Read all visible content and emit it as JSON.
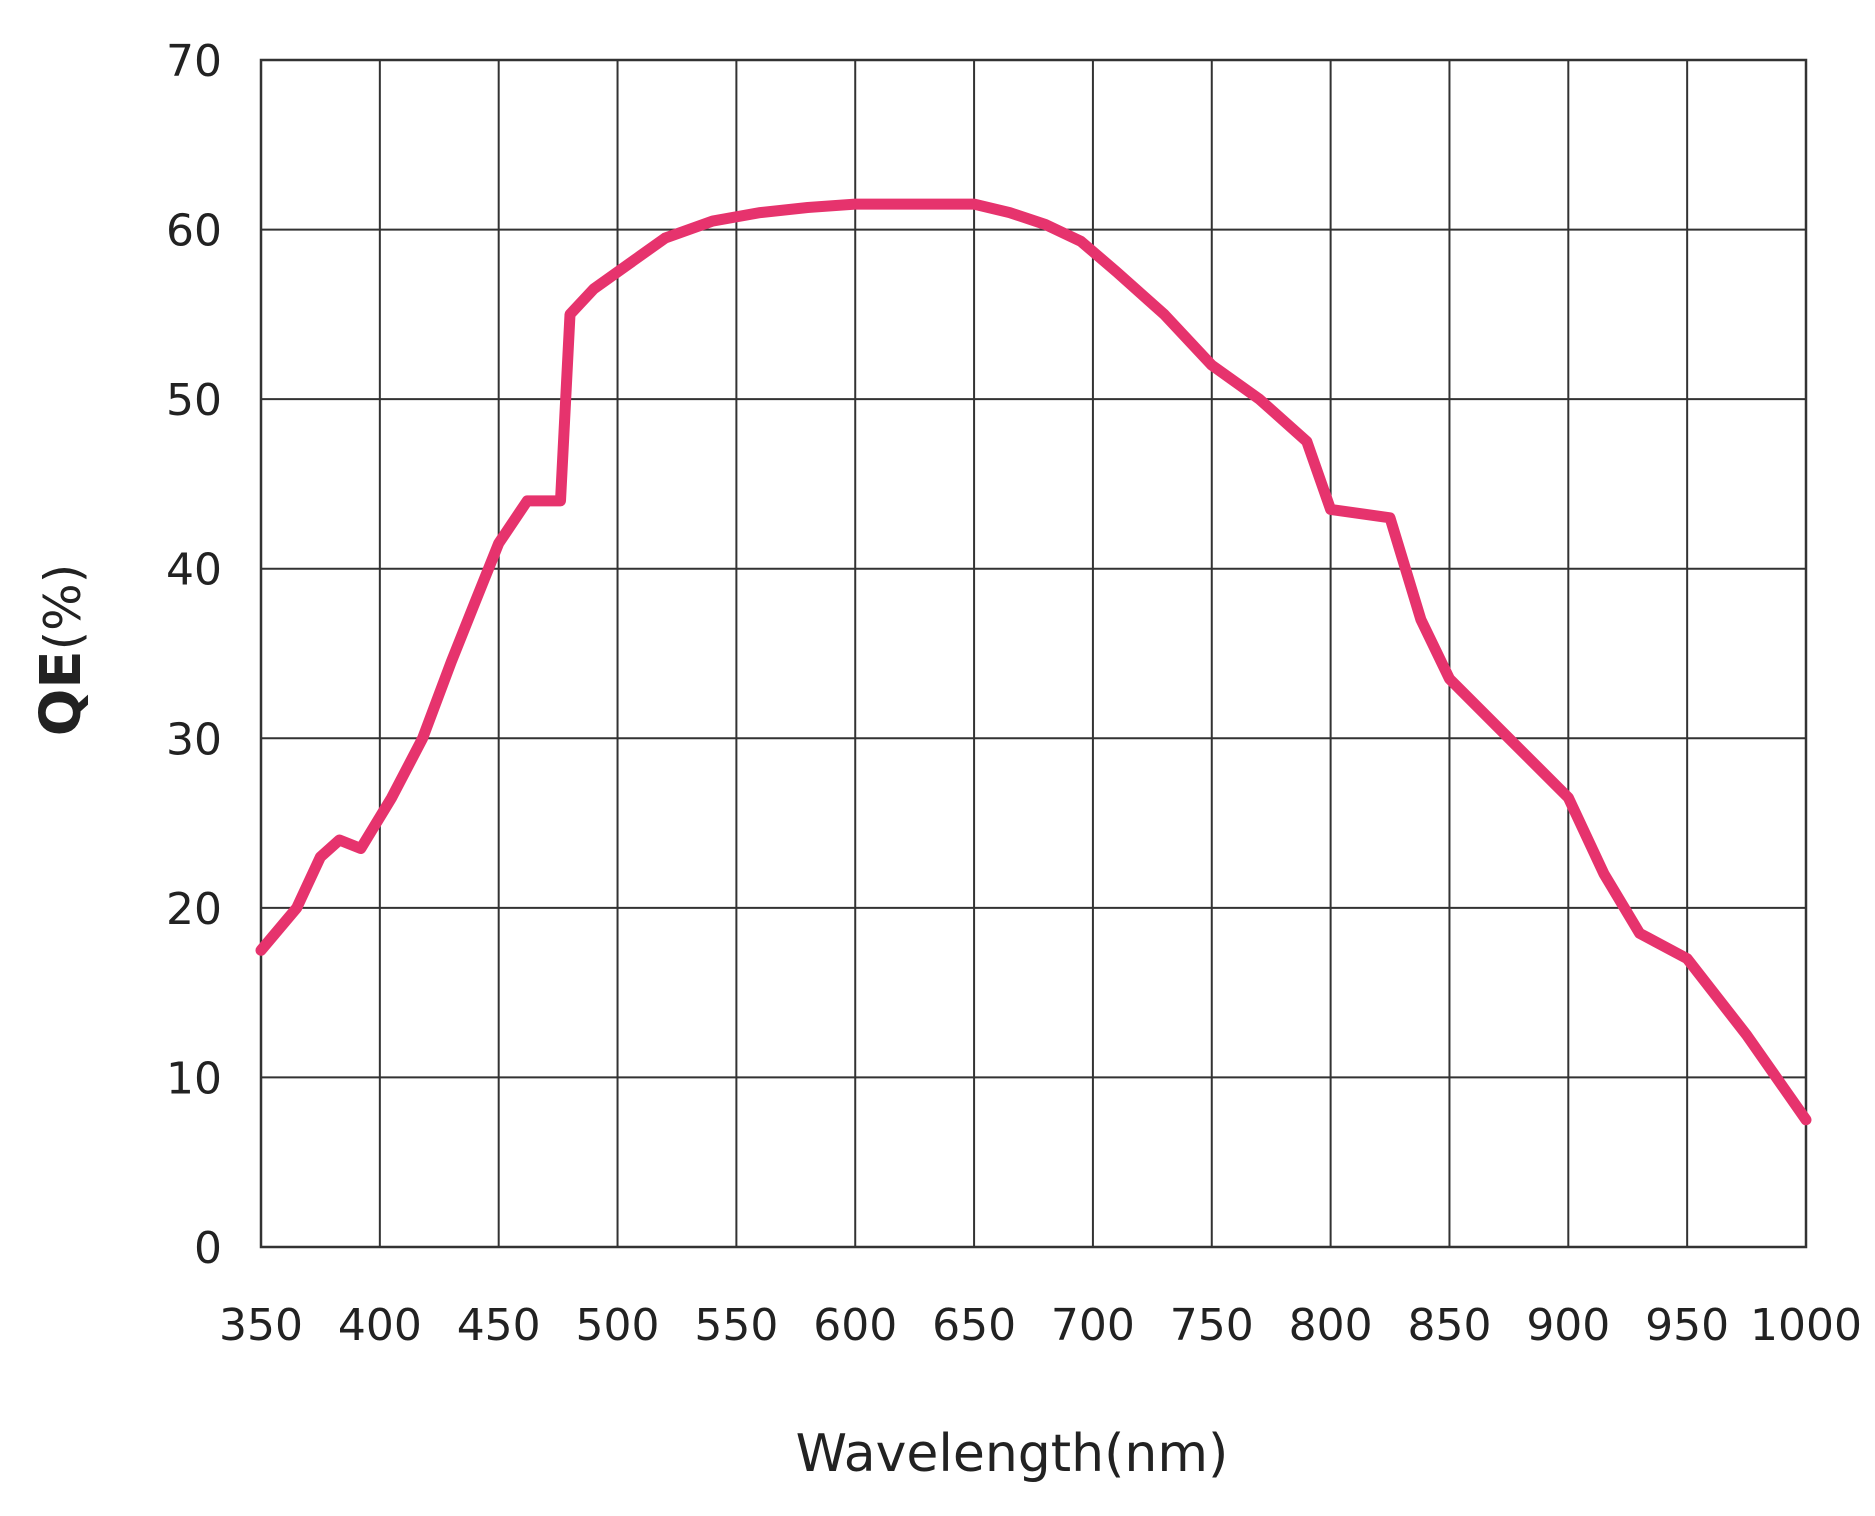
{
  "chart_data": {
    "type": "line",
    "title": "",
    "xlabel": "Wavelength(nm)",
    "ylabel_main": "QE",
    "ylabel_unit": "(%)",
    "xlim": [
      350,
      1000
    ],
    "ylim": [
      0,
      70
    ],
    "x_ticks": [
      350,
      400,
      450,
      500,
      550,
      600,
      650,
      700,
      750,
      800,
      850,
      900,
      950,
      1000
    ],
    "x_tick_labels": [
      "350",
      "400",
      "450",
      "500",
      "550",
      "600",
      "650",
      "700",
      "750",
      "800",
      "850",
      "900",
      "950",
      "1000"
    ],
    "y_ticks": [
      0,
      10,
      20,
      30,
      40,
      50,
      60,
      70
    ],
    "y_tick_labels": [
      "0",
      "10",
      "20",
      "30",
      "40",
      "50",
      "60",
      "70"
    ],
    "grid": true,
    "line_color": "#e6336d",
    "series": [
      {
        "x": [
          350,
          365,
          375,
          383,
          392,
          405,
          418,
          430,
          440,
          450,
          462,
          476,
          480,
          490,
          500,
          520,
          540,
          560,
          580,
          600,
          620,
          640,
          650,
          665,
          680,
          695,
          710,
          730,
          750,
          770,
          790,
          800,
          825,
          838,
          850,
          875,
          900,
          915,
          930,
          950,
          975,
          1000
        ],
        "y": [
          17.5,
          20,
          23,
          24,
          23.5,
          26.5,
          30,
          34.5,
          38,
          41.5,
          44,
          44,
          55,
          56.5,
          57.5,
          59.5,
          60.5,
          61,
          61.3,
          61.5,
          61.5,
          61.5,
          61.5,
          61,
          60.3,
          59.3,
          57.5,
          55,
          52,
          50,
          47.5,
          43.5,
          43,
          37,
          33.5,
          30,
          26.5,
          22,
          18.5,
          17,
          12.5,
          7.5
        ]
      }
    ]
  }
}
